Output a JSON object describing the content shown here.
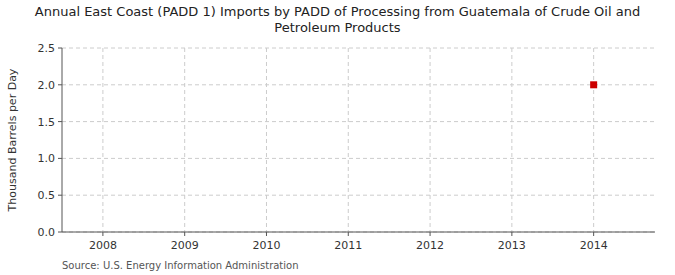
{
  "chart_data": {
    "type": "scatter",
    "title": "Annual East Coast (PADD 1) Imports by PADD of Processing from Guatemala of Crude Oil and\nPetroleum Products",
    "y_label": "Thousand Barrels per Day",
    "annotations": [
      "Source: U.S. Energy Information Administration"
    ],
    "x": [
      2014
    ],
    "values": [
      2.0
    ],
    "color": "#cc0000",
    "marker": "square",
    "xlim": [
      2007.5,
      2014.75
    ],
    "ylim": [
      0,
      2.5
    ],
    "xticks": [
      2008,
      2009,
      2010,
      2011,
      2012,
      2013,
      2014
    ],
    "yticks": [
      {
        "value": 0.0,
        "label": "0.0"
      },
      0.5,
      {
        "value": 1.0,
        "label": "1.0"
      },
      1.5,
      {
        "value": 2.0,
        "label": "2.0"
      },
      2.5
    ],
    "grid": true
  }
}
